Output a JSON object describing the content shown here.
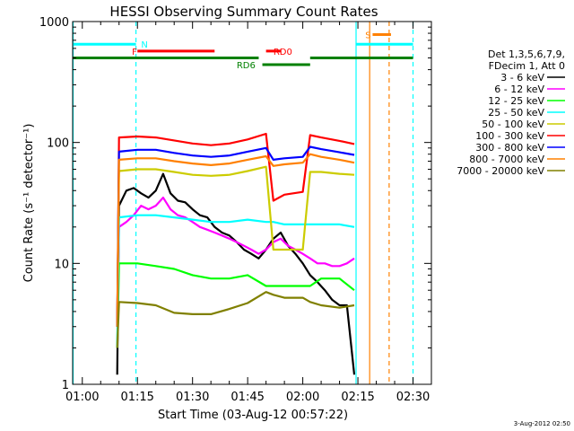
{
  "chart_data": {
    "type": "line",
    "title": "HESSI Observing Summary Count Rates",
    "xlabel": "Start Time (03-Aug-12 00:57:22)",
    "ylabel": "Count Rate (s⁻¹ detector⁻¹)",
    "yscale": "log",
    "ylim": [
      1,
      1000
    ],
    "xlim_minutes": [
      57.37,
      155
    ],
    "x_ticks": [
      {
        "label": "01:00",
        "minute": 60
      },
      {
        "label": "01:15",
        "minute": 75
      },
      {
        "label": "01:30",
        "minute": 90
      },
      {
        "label": "01:45",
        "minute": 105
      },
      {
        "label": "02:00",
        "minute": 120
      },
      {
        "label": "02:15",
        "minute": 135
      },
      {
        "label": "02:30",
        "minute": 150
      }
    ],
    "y_ticks": [
      {
        "label": "1",
        "value": 1
      },
      {
        "label": "10",
        "value": 10
      },
      {
        "label": "100",
        "value": 100
      },
      {
        "label": "1000",
        "value": 1000
      }
    ],
    "legend_header": [
      "Det 1,3,5,6,7,9,",
      "FDecim 1, Att 0"
    ],
    "legend_placement": "right",
    "timestamp": "3-Aug-2012 02:50",
    "series": [
      {
        "name": "3 - 6 keV",
        "color": "#000000",
        "x": [
          69.5,
          70,
          72,
          74,
          76,
          78,
          80,
          82,
          84,
          86,
          88,
          90,
          92,
          94,
          96,
          98,
          100,
          102,
          104,
          106,
          108,
          110,
          112,
          114,
          116,
          118,
          120,
          122,
          124,
          126,
          128,
          130,
          132,
          134
        ],
        "y": [
          1.2,
          30,
          40,
          42,
          38,
          35,
          40,
          55,
          38,
          33,
          32,
          28,
          25,
          24,
          20,
          18,
          17,
          15,
          13,
          12,
          11,
          13,
          16,
          18,
          14,
          12,
          10,
          8,
          7,
          6,
          5,
          4.5,
          4.5,
          1.2
        ]
      },
      {
        "name": "6 - 12 keV",
        "color": "#ff00ff",
        "x": [
          69.5,
          70,
          72,
          74,
          76,
          78,
          80,
          82,
          84,
          86,
          88,
          90,
          92,
          94,
          96,
          98,
          100,
          102,
          104,
          106,
          108,
          110,
          112,
          114,
          116,
          118,
          120,
          122,
          124,
          126,
          128,
          130,
          132,
          134
        ],
        "y": [
          3,
          20,
          22,
          25,
          30,
          28,
          30,
          35,
          28,
          25,
          24,
          22,
          20,
          19,
          18,
          17,
          16,
          15,
          14,
          13,
          12,
          13,
          15,
          16,
          14,
          13,
          12,
          11,
          10,
          10,
          9.5,
          9.5,
          10,
          11
        ]
      },
      {
        "name": "12 - 25 keV",
        "color": "#00ff00",
        "x": [
          69.5,
          70,
          75,
          80,
          85,
          90,
          95,
          100,
          105,
          110,
          112,
          115,
          120,
          122,
          125,
          130,
          134
        ],
        "y": [
          2,
          10,
          10,
          9.5,
          9,
          8,
          7.5,
          7.5,
          8,
          6.5,
          6.5,
          6.5,
          6.5,
          6.5,
          7.5,
          7.5,
          6
        ]
      },
      {
        "name": "25 - 50 keV",
        "color": "#00ffff",
        "x": [
          69.5,
          70,
          75,
          80,
          85,
          90,
          95,
          100,
          105,
          110,
          112,
          115,
          120,
          122,
          125,
          130,
          134
        ],
        "y": [
          2,
          24,
          25,
          25,
          24,
          23,
          22,
          22,
          23,
          22,
          22,
          21,
          21,
          21,
          21,
          21,
          20
        ]
      },
      {
        "name": "50 - 100 keV",
        "color": "#cccc00",
        "x": [
          69.5,
          70,
          75,
          80,
          85,
          90,
          95,
          100,
          105,
          110,
          112,
          115,
          120,
          122,
          125,
          130,
          134
        ],
        "y": [
          3,
          58,
          60,
          60,
          57,
          54,
          53,
          54,
          58,
          63,
          13,
          13,
          13,
          57,
          57,
          55,
          54
        ]
      },
      {
        "name": "100 - 300 keV",
        "color": "#ff0000",
        "x": [
          69.5,
          70,
          75,
          80,
          85,
          90,
          95,
          100,
          105,
          110,
          112,
          115,
          120,
          122,
          125,
          130,
          134
        ],
        "y": [
          3,
          110,
          112,
          110,
          104,
          98,
          95,
          98,
          106,
          118,
          33,
          37,
          39,
          115,
          110,
          103,
          97
        ]
      },
      {
        "name": "300 - 800 keV",
        "color": "#0000ff",
        "x": [
          69.5,
          70,
          75,
          80,
          85,
          90,
          95,
          100,
          105,
          110,
          112,
          115,
          120,
          122,
          125,
          130,
          134
        ],
        "y": [
          3,
          84,
          87,
          87,
          82,
          78,
          76,
          78,
          84,
          90,
          72,
          74,
          76,
          92,
          88,
          83,
          79
        ]
      },
      {
        "name": "800 - 7000 keV",
        "color": "#ff8000",
        "x": [
          69.5,
          70,
          75,
          80,
          85,
          90,
          95,
          100,
          105,
          110,
          112,
          115,
          120,
          122,
          125,
          130,
          134
        ],
        "y": [
          3,
          72,
          74,
          74,
          70,
          67,
          65,
          67,
          72,
          77,
          64,
          66,
          68,
          80,
          76,
          72,
          68
        ]
      },
      {
        "name": "7000 - 20000 keV",
        "color": "#808000",
        "x": [
          69.5,
          70,
          75,
          80,
          85,
          90,
          95,
          100,
          105,
          110,
          112,
          115,
          120,
          122,
          125,
          130,
          134
        ],
        "y": [
          2,
          4.8,
          4.7,
          4.5,
          3.9,
          3.8,
          3.8,
          4.2,
          4.7,
          5.8,
          5.5,
          5.2,
          5.2,
          4.8,
          4.5,
          4.3,
          4.5
        ]
      }
    ],
    "flags": [
      {
        "label": "",
        "color": "#00ffff",
        "y": 650,
        "segments": [
          [
            57.4,
            74.6
          ],
          [
            134.5,
            150
          ]
        ]
      },
      {
        "label": "N",
        "color": "#00ffff",
        "y": 650,
        "label_minute": 76,
        "segments": []
      },
      {
        "label": "F",
        "color": "#ff0000",
        "y": 570,
        "label_minute": 73.5,
        "segments": [
          [
            75,
            96
          ]
        ]
      },
      {
        "label": "",
        "color": "#008000",
        "y": 500,
        "segments": [
          [
            57.4,
            108
          ],
          [
            122,
            150
          ]
        ]
      },
      {
        "label": "RD6",
        "color": "#008000",
        "y": 440,
        "label_minute": 102,
        "segments": [
          [
            109,
            122
          ]
        ]
      },
      {
        "label": "RD0",
        "color": "#ff0000",
        "y": 570,
        "label_minute": 112,
        "segments": [
          [
            110,
            114
          ]
        ]
      },
      {
        "label": "S",
        "color": "#ff8000",
        "y": 780,
        "label_minute": 137,
        "segments": [
          [
            139,
            144
          ]
        ]
      }
    ],
    "vertical_markers": [
      {
        "minute": 57.5,
        "color": "#00ffff",
        "style": "solid"
      },
      {
        "minute": 74.6,
        "color": "#00ffff",
        "style": "dashed"
      },
      {
        "minute": 134.5,
        "color": "#00ffff",
        "style": "solid"
      },
      {
        "minute": 138.2,
        "color": "#ff8000",
        "style": "solid"
      },
      {
        "minute": 143.5,
        "color": "#ff8000",
        "style": "dashed"
      },
      {
        "minute": 150,
        "color": "#00ffff",
        "style": "dashed"
      }
    ]
  }
}
